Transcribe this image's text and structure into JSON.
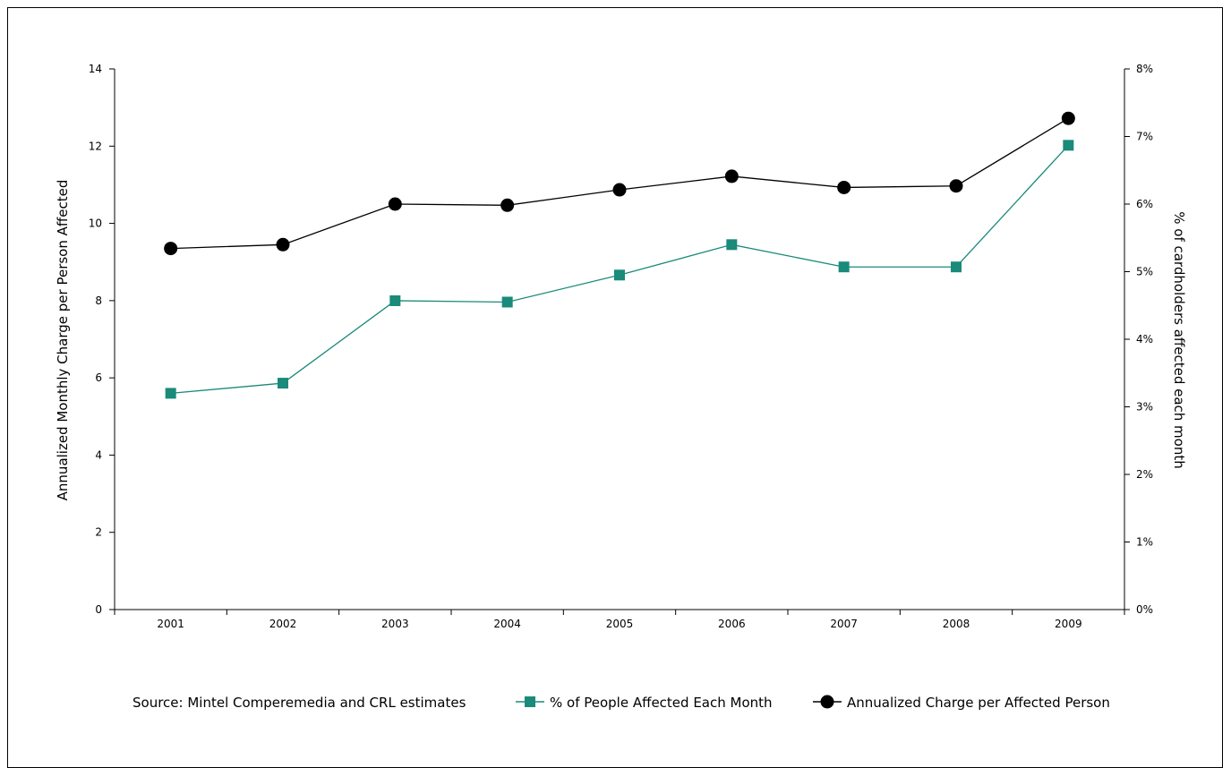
{
  "chart_data": {
    "type": "line",
    "categories": [
      "2001",
      "2002",
      "2003",
      "2004",
      "2005",
      "2006",
      "2007",
      "2008",
      "2009"
    ],
    "ylabel_left": "Annualized Monthly Charge per Person Affected",
    "ylabel_right": "% of cardholders affected each month",
    "ylim_left": [
      0,
      14
    ],
    "yticks_left": [
      "0",
      "2",
      "4",
      "6",
      "8",
      "10",
      "12",
      "14"
    ],
    "ylim_right": [
      0,
      8
    ],
    "yticks_right": [
      "0%",
      "1%",
      "2%",
      "3%",
      "4%",
      "5%",
      "6%",
      "7%",
      "8%"
    ],
    "series": [
      {
        "name": "% of People Affected Each Month",
        "axis": "right",
        "marker": "square",
        "color": "#1a8a7a",
        "values": [
          3.2,
          3.35,
          4.57,
          4.55,
          4.95,
          5.4,
          5.07,
          5.07,
          6.87
        ]
      },
      {
        "name": "Annualized Charge per Affected Person",
        "axis": "left",
        "marker": "circle",
        "color": "#000000",
        "values": [
          9.35,
          9.45,
          10.5,
          10.47,
          10.87,
          11.22,
          10.93,
          10.97,
          12.72
        ]
      }
    ],
    "grid": false,
    "legend_position": "bottom"
  },
  "source_text": "Source: Mintel Comperemedia and CRL estimates"
}
